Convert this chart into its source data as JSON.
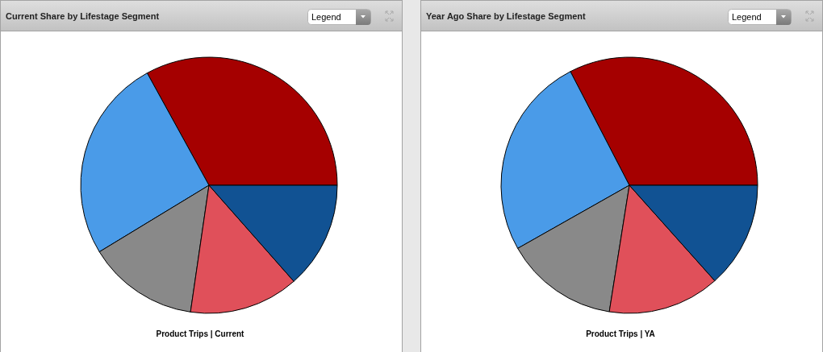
{
  "chart_data": [
    {
      "type": "pie",
      "title": "Current Share by Lifestage Segment",
      "xlabel": "Product Trips | Current",
      "annotations": [
        "Legend"
      ],
      "categories": [
        null,
        null,
        null,
        null,
        null
      ],
      "values": [
        33.0,
        25.7,
        14.0,
        13.8,
        13.5
      ],
      "colors": [
        "#a50000",
        "#4a9be8",
        "#898989",
        "#e0505a",
        "#115293"
      ]
    },
    {
      "type": "pie",
      "title": "Year Ago Share by Lifestage Segment",
      "xlabel": "Product Trips | YA",
      "annotations": [
        "Legend"
      ],
      "categories": [
        null,
        null,
        null,
        null,
        null
      ],
      "values": [
        32.6,
        25.6,
        14.3,
        14.1,
        13.4
      ],
      "colors": [
        "#a50000",
        "#4a9be8",
        "#898989",
        "#e0505a",
        "#115293"
      ]
    }
  ]
}
